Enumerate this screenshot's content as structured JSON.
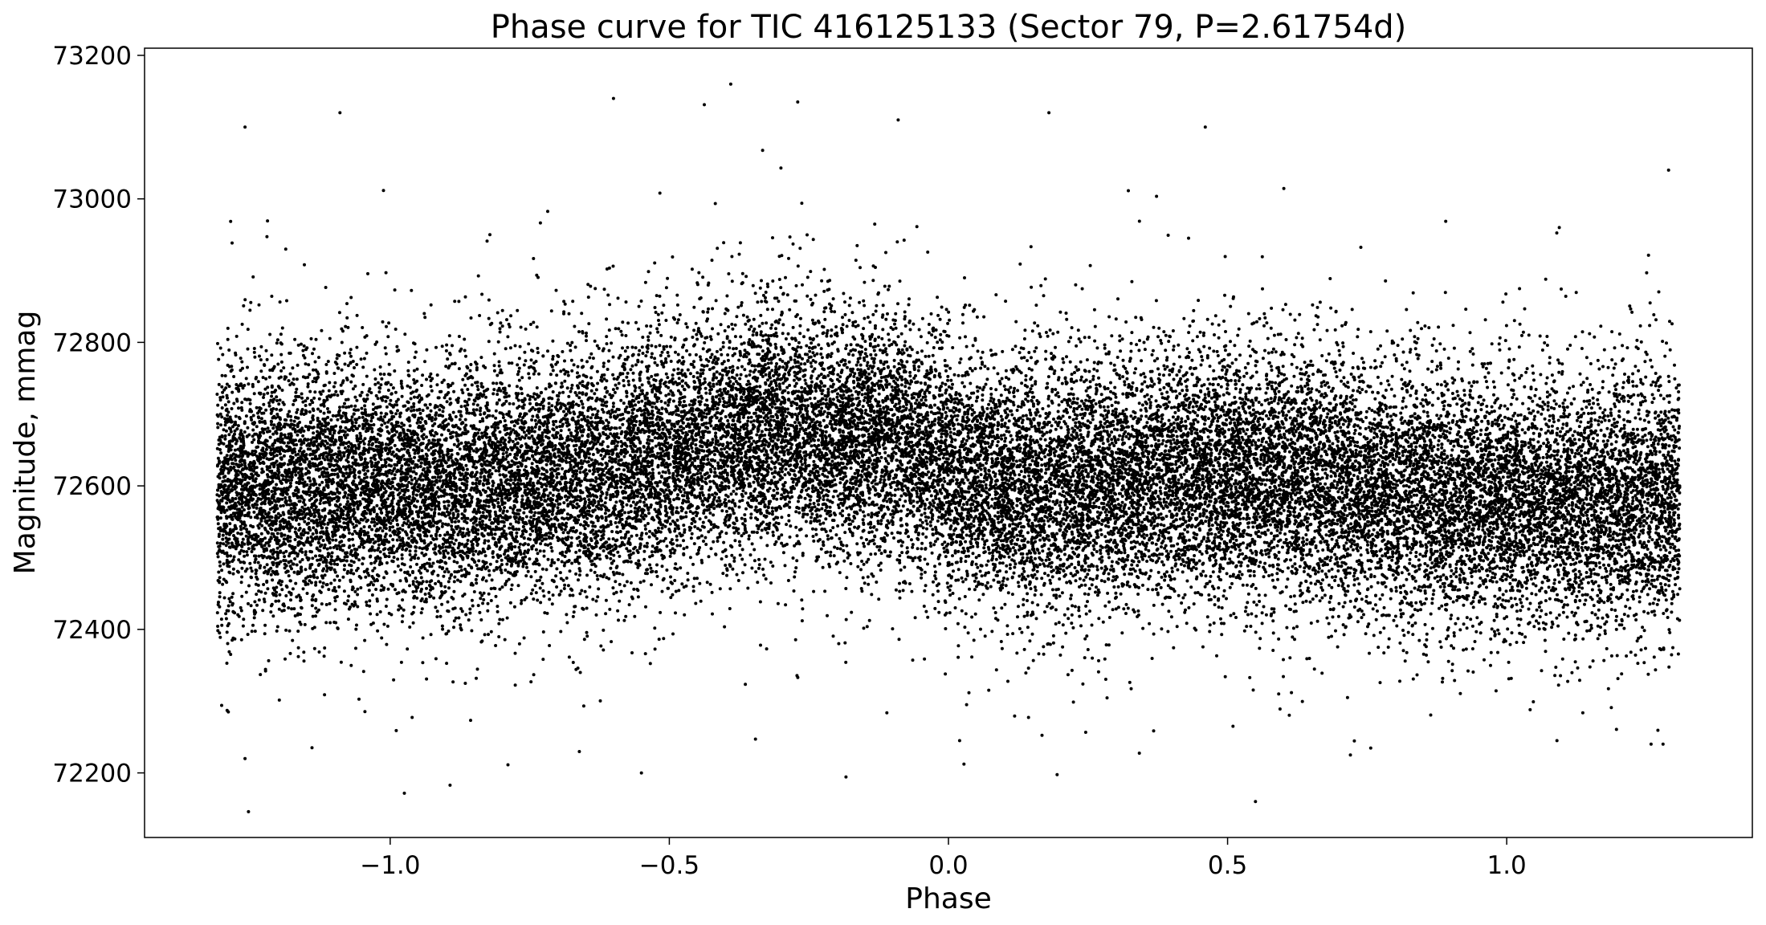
{
  "chart_data": {
    "type": "scatter",
    "title": "Phase curve for TIC 416125133 (Sector 79, P=2.61754d)",
    "xlabel": "Phase",
    "ylabel": "Magnitude, mmag",
    "xlim": [
      -1.44,
      1.44
    ],
    "ylim": [
      72110,
      73210
    ],
    "x_ticks": [
      -1.0,
      -0.5,
      0.0,
      0.5,
      1.0
    ],
    "x_tick_labels": [
      "−1.0",
      "−0.5",
      "0.0",
      "0.5",
      "1.0"
    ],
    "y_ticks": [
      72200,
      72400,
      72600,
      72800,
      73000,
      73200
    ],
    "y_tick_labels": [
      "72200",
      "72400",
      "72600",
      "72800",
      "73000",
      "73200"
    ],
    "grid": false,
    "legend": "none",
    "marker_color": "#000000",
    "series": [
      {
        "phase_range": [
          -1.31,
          1.31
        ],
        "point_count": 30000,
        "scatter_sd_mmag": 85,
        "binned_trend": {
          "x": [
            -1.3,
            -1.1,
            -0.9,
            -0.7,
            -0.5,
            -0.3,
            -0.1,
            0.0,
            0.1,
            0.3,
            0.5,
            0.7,
            0.9,
            1.1,
            1.3
          ],
          "y": [
            72590,
            72600,
            72595,
            72610,
            72640,
            72680,
            72665,
            72620,
            72600,
            72605,
            72615,
            72600,
            72580,
            72575,
            72585
          ]
        },
        "sample_points": [
          {
            "x": -0.39,
            "y": 73160
          },
          {
            "x": -0.6,
            "y": 73140
          },
          {
            "x": -1.26,
            "y": 73100
          },
          {
            "x": -1.09,
            "y": 73120
          },
          {
            "x": -0.27,
            "y": 73135
          },
          {
            "x": -0.09,
            "y": 73110
          },
          {
            "x": 0.18,
            "y": 73120
          },
          {
            "x": 0.46,
            "y": 73100
          },
          {
            "x": -1.29,
            "y": 72285
          },
          {
            "x": -1.26,
            "y": 72220
          },
          {
            "x": -1.14,
            "y": 72235
          },
          {
            "x": -0.55,
            "y": 72200
          },
          {
            "x": 0.02,
            "y": 72245
          },
          {
            "x": 0.55,
            "y": 72160
          },
          {
            "x": 0.72,
            "y": 72225
          },
          {
            "x": 1.09,
            "y": 72245
          },
          {
            "x": 1.28,
            "y": 72240
          },
          {
            "x": 1.29,
            "y": 73040
          }
        ]
      }
    ]
  }
}
